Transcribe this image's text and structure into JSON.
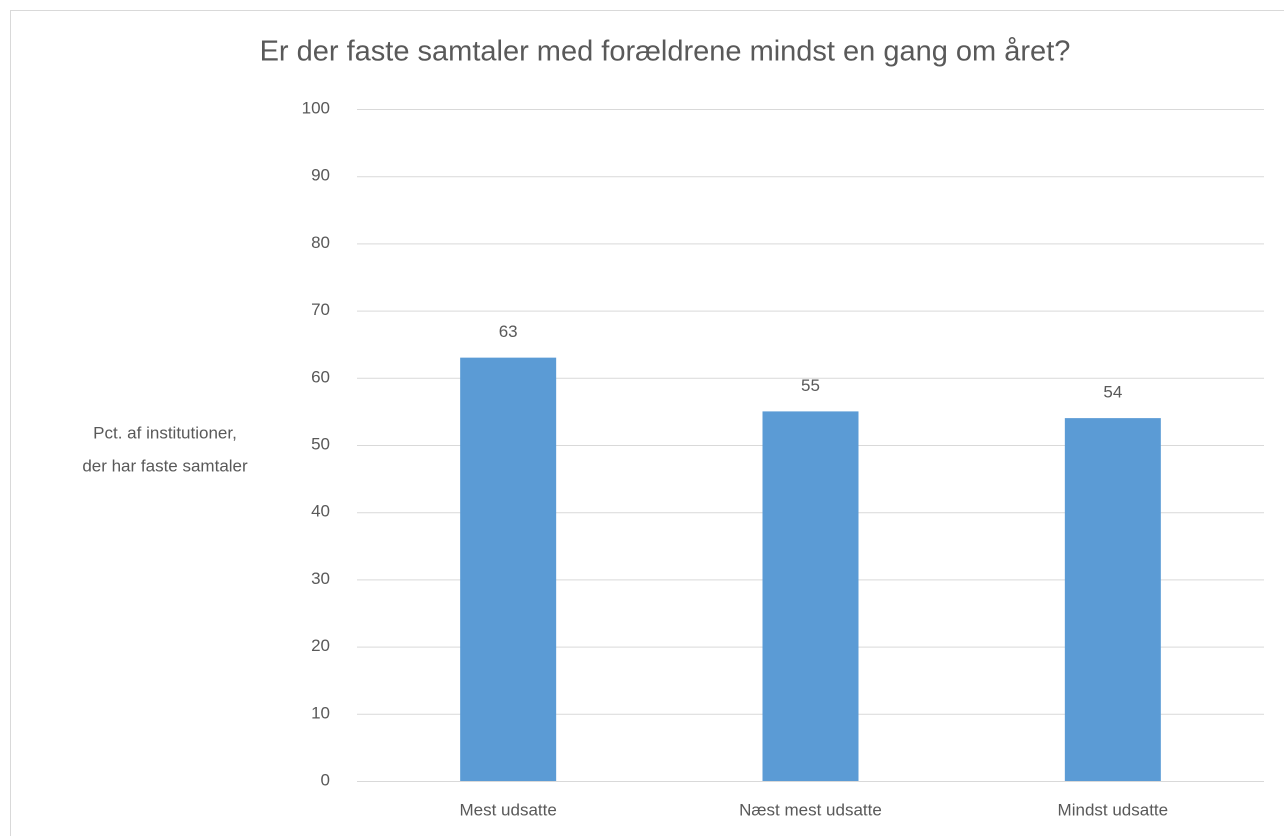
{
  "chart_data": {
    "type": "bar",
    "title": "Er der faste samtaler med forældrene mindst en gang om året?",
    "ylabel": [
      "Pct. af institutioner,",
      "der har faste samtaler"
    ],
    "categories": [
      "Mest udsatte",
      "Næst mest udsatte",
      "Mindst udsatte"
    ],
    "values": [
      63,
      55,
      54
    ],
    "color": "#5b9bd5",
    "ylim": [
      0,
      100
    ],
    "yticks": [
      0,
      10,
      20,
      30,
      40,
      50,
      60,
      70,
      80,
      90,
      100
    ],
    "grid": true
  }
}
